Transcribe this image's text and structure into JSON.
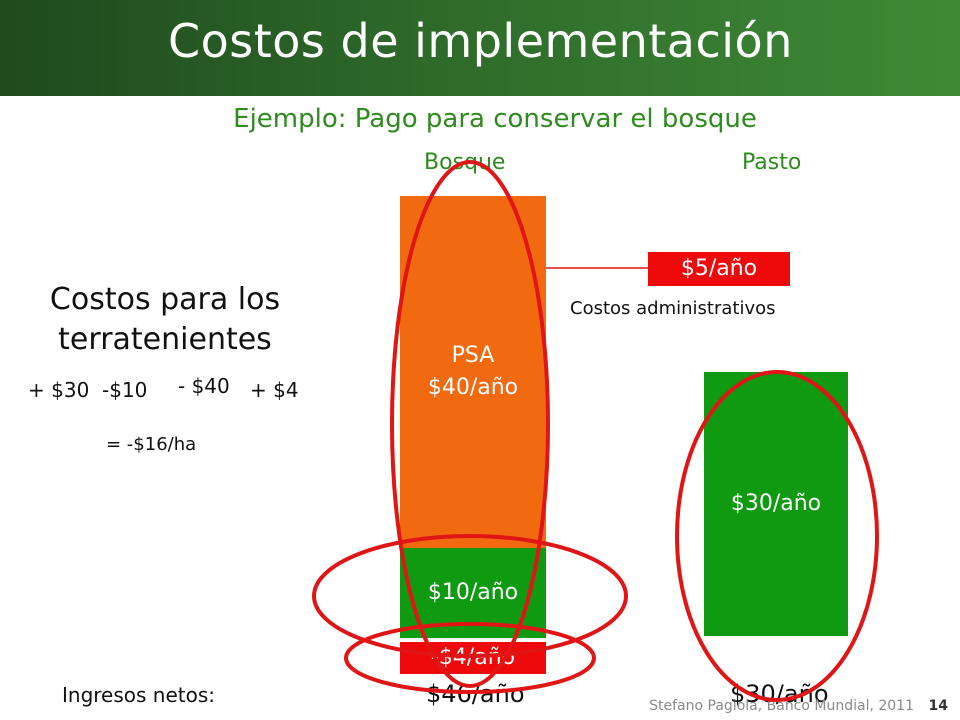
{
  "title": "Costos de implementación",
  "subtitle": "Ejemplo: Pago para conservar el bosque",
  "columns": {
    "forest": "Bosque",
    "pasture": "Pasto"
  },
  "bars": {
    "psa_line1": "PSA",
    "psa_line2": "$40/año",
    "forest_income": "$10/año",
    "forest_cost": "-$4/año",
    "admin_cost": "$5/año",
    "pasture_income": "$30/año"
  },
  "admin_label": "Costos administrativos",
  "left": {
    "heading_line1": "Costos para los",
    "heading_line2": "terratenientes",
    "term1": "+ $30",
    "term2": "-$10",
    "term3": "- $40",
    "term4": "+ $4",
    "result": "= -$16/ha"
  },
  "net_income": {
    "label": "Ingresos netos:",
    "forest": "$46/año",
    "pasture": "$30/año"
  },
  "footer": "Stefano Pagiola, Banco Mundial, 2011",
  "page_number": "14",
  "colors": {
    "header_dark": "#1f4a1e",
    "accent_green": "#2e8b1e",
    "bar_orange": "#f26a0f",
    "bar_green": "#0f9a12",
    "bar_red": "#ee0a0a",
    "circle_red": "#e01515"
  }
}
